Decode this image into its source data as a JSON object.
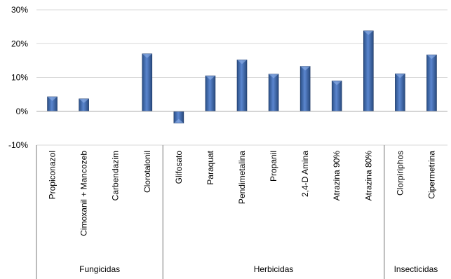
{
  "chart_data": {
    "type": "bar",
    "title": "",
    "xlabel": "",
    "ylabel": "",
    "ylim": [
      -0.1,
      0.3
    ],
    "yticks": [
      -0.1,
      0,
      0.1,
      0.2,
      0.3
    ],
    "ytick_labels": [
      "-10%",
      "0%",
      "10%",
      "20%",
      "30%"
    ],
    "grid": true,
    "legend": "none",
    "bar_color": "#4472c4",
    "groups": [
      {
        "name": "Fungicidas",
        "categories": [
          "Propiconazol",
          "Cimoxanil + Mancozeb",
          "Carbendazim",
          "Clorotalonil"
        ]
      },
      {
        "name": "Herbicidas",
        "categories": [
          "Glifosato",
          "Paraquat",
          "Pendimetalina",
          "Propanil",
          "2,4-D Amina",
          "Atrazina 90%",
          "Atrazina 80%"
        ]
      },
      {
        "name": "Insecticidas",
        "categories": [
          "Clorpiriphos",
          "Cipermetrina"
        ]
      }
    ],
    "categories": [
      "Propiconazol",
      "Cimoxanil + Mancozeb",
      "Carbendazim",
      "Clorotalonil",
      "Glifosato",
      "Paraquat",
      "Pendimetalina",
      "Propanil",
      "2,4-D Amina",
      "Atrazina 90%",
      "Atrazina 80%",
      "Clorpiriphos",
      "Cipermetrina"
    ],
    "values": [
      0.043,
      0.037,
      0.0,
      0.17,
      -0.035,
      0.105,
      0.152,
      0.11,
      0.133,
      0.09,
      0.238,
      0.111,
      0.167
    ]
  }
}
